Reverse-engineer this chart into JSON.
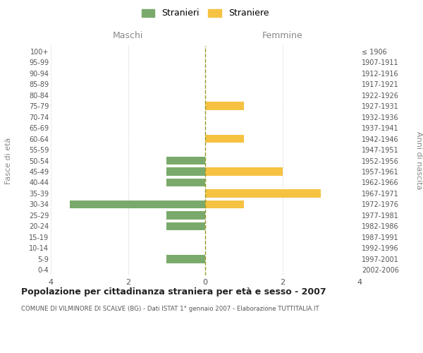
{
  "age_groups": [
    "0-4",
    "5-9",
    "10-14",
    "15-19",
    "20-24",
    "25-29",
    "30-34",
    "35-39",
    "40-44",
    "45-49",
    "50-54",
    "55-59",
    "60-64",
    "65-69",
    "70-74",
    "75-79",
    "80-84",
    "85-89",
    "90-94",
    "95-99",
    "100+"
  ],
  "birth_years": [
    "2002-2006",
    "1997-2001",
    "1992-1996",
    "1987-1991",
    "1982-1986",
    "1977-1981",
    "1972-1976",
    "1967-1971",
    "1962-1966",
    "1957-1961",
    "1952-1956",
    "1947-1951",
    "1942-1946",
    "1937-1941",
    "1932-1936",
    "1927-1931",
    "1922-1926",
    "1917-1921",
    "1912-1916",
    "1907-1911",
    "≤ 1906"
  ],
  "maschi": [
    0,
    1,
    0,
    0,
    1,
    1,
    3.5,
    0,
    1,
    1,
    1,
    0,
    0,
    0,
    0,
    0,
    0,
    0,
    0,
    0,
    0
  ],
  "femmine": [
    0,
    0,
    0,
    0,
    0,
    0,
    1,
    3,
    0,
    2,
    0,
    0,
    1,
    0,
    0,
    1,
    0,
    0,
    0,
    0,
    0
  ],
  "male_color": "#7aaa6b",
  "female_color": "#f5c242",
  "grid_color": "#cccccc",
  "center_line_color": "#9a9a2a",
  "title": "Popolazione per cittadinanza straniera per età e sesso - 2007",
  "subtitle": "COMUNE DI VILMINORE DI SCALVE (BG) - Dati ISTAT 1° gennaio 2007 - Elaborazione TUTTITALIA.IT",
  "ylabel_left": "Fasce di età",
  "ylabel_right": "Anni di nascita",
  "xlabel_left": "Maschi",
  "xlabel_right": "Femmine",
  "legend_male": "Stranieri",
  "legend_female": "Straniere",
  "xlim": 4,
  "background_color": "#ffffff"
}
